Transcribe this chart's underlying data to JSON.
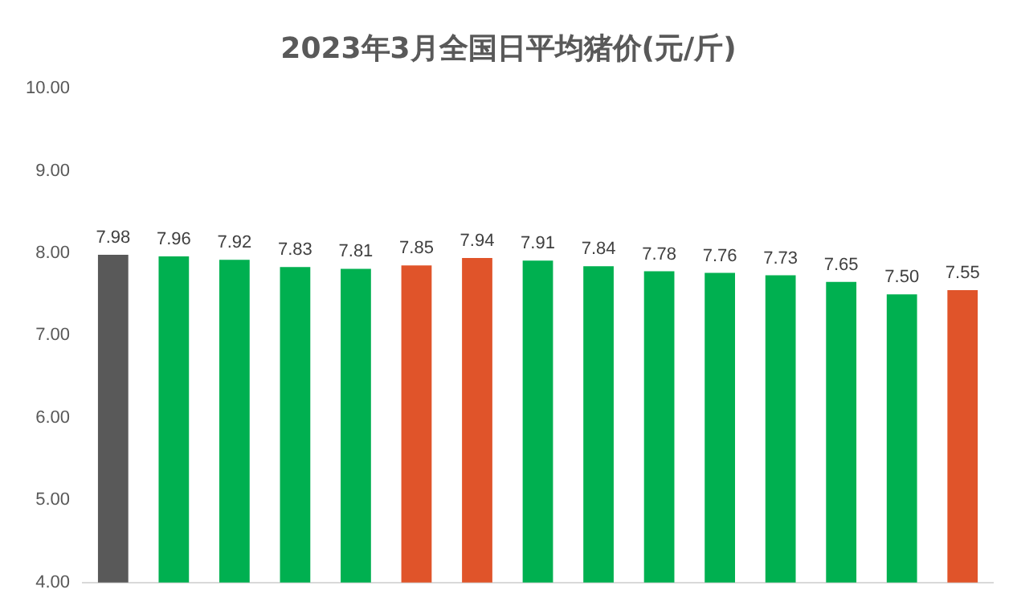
{
  "chart_data": {
    "type": "bar",
    "title": "2023年3月全国日平均猪价(元/斤)",
    "categories": [
      null,
      null,
      null,
      null,
      null,
      null,
      null,
      null,
      null,
      null,
      null,
      null,
      null,
      null,
      null
    ],
    "values": [
      7.98,
      7.96,
      7.92,
      7.83,
      7.81,
      7.85,
      7.94,
      7.91,
      7.84,
      7.78,
      7.76,
      7.73,
      7.65,
      7.5,
      7.55
    ],
    "value_labels": [
      "7.98",
      "7.96",
      "7.92",
      "7.83",
      "7.81",
      "7.85",
      "7.94",
      "7.91",
      "7.84",
      "7.78",
      "7.76",
      "7.73",
      "7.65",
      "7.50",
      "7.55"
    ],
    "colors": [
      "#595959",
      "#00b050",
      "#00b050",
      "#00b050",
      "#00b050",
      "#e0542a",
      "#e0542a",
      "#00b050",
      "#00b050",
      "#00b050",
      "#00b050",
      "#00b050",
      "#00b050",
      "#00b050",
      "#e0542a"
    ],
    "ylim": [
      4,
      10
    ],
    "yticks": [
      {
        "value": 4,
        "label": "4.00"
      },
      {
        "value": 5,
        "label": "5.00"
      },
      {
        "value": 6,
        "label": "6.00"
      },
      {
        "value": 7,
        "label": "7.00"
      },
      {
        "value": 8,
        "label": "8.00"
      },
      {
        "value": 9,
        "label": "9.00"
      },
      {
        "value": 10,
        "label": "10.00"
      }
    ],
    "grid": false,
    "legend": false
  }
}
